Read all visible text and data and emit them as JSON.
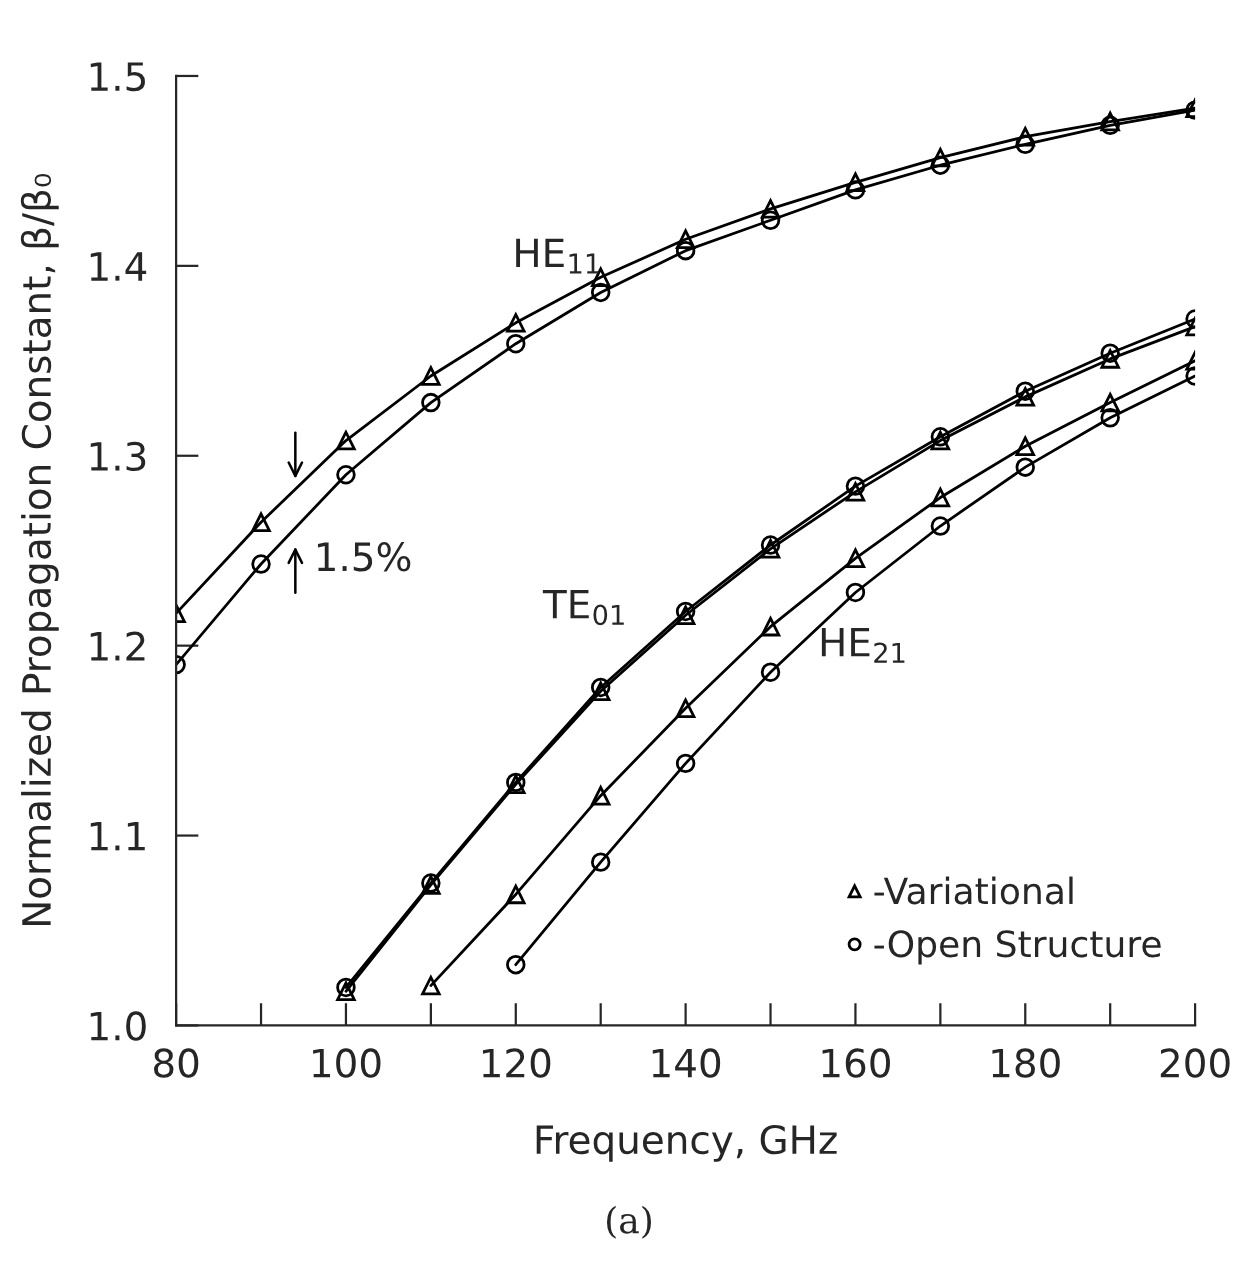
{
  "chart_data": {
    "type": "line",
    "xlabel": "Frequency, GHz",
    "ylabel": "Normalized Propagation Constant, β/β₀",
    "xlim": [
      80,
      200
    ],
    "ylim": [
      1.0,
      1.5
    ],
    "xticks": [
      80,
      {
        "value": 90,
        "label": null
      },
      100,
      {
        "value": 110,
        "label": null
      },
      120,
      {
        "value": 130,
        "label": null
      },
      140,
      {
        "value": 150,
        "label": null
      },
      160,
      {
        "value": 170,
        "label": null
      },
      180,
      {
        "value": 190,
        "label": null
      },
      200
    ],
    "yticks": [
      {
        "value": 1.0,
        "label": "1.0"
      },
      1.1,
      1.2,
      1.3,
      1.4,
      1.5
    ],
    "grid": false,
    "legend": "bottom right",
    "line_style": "solid",
    "series": [
      {
        "name": "-Variational",
        "color": "#000000",
        "marker": "triangle",
        "x": [
          80,
          90,
          100,
          110,
          120,
          130,
          140,
          150,
          160,
          170,
          180,
          190,
          200
        ],
        "values": [
          1.217,
          1.265,
          1.308,
          1.342,
          1.37,
          1.394,
          1.414,
          1.43,
          1.444,
          1.457,
          1.468,
          1.476,
          1.483
        ]
      },
      {
        "name": "-Open Structure",
        "color": "#000000",
        "marker": "circle",
        "x": [
          80,
          90,
          100,
          110,
          120,
          130,
          140,
          150,
          160,
          170,
          180,
          190,
          200
        ],
        "values": [
          1.19,
          1.243,
          1.29,
          1.328,
          1.359,
          1.386,
          1.408,
          1.424,
          1.44,
          1.453,
          1.464,
          1.474,
          1.482
        ]
      },
      {
        "color": "#000000",
        "marker": "triangle",
        "x": [
          100,
          110,
          120,
          130,
          140,
          150,
          160,
          170,
          180,
          190,
          200
        ],
        "values": [
          1.018,
          1.074,
          1.127,
          1.176,
          1.216,
          1.251,
          1.281,
          1.308,
          1.331,
          1.351,
          1.368
        ]
      },
      {
        "color": "#000000",
        "marker": "circle",
        "x": [
          100,
          110,
          120,
          130,
          140,
          150,
          160,
          170,
          180,
          190,
          200
        ],
        "values": [
          1.02,
          1.075,
          1.128,
          1.178,
          1.218,
          1.253,
          1.284,
          1.31,
          1.334,
          1.354,
          1.372
        ]
      },
      {
        "color": "#000000",
        "marker": "triangle",
        "x": [
          110,
          120,
          130,
          140,
          150,
          160,
          170,
          180,
          190,
          200
        ],
        "values": [
          1.021,
          1.069,
          1.121,
          1.167,
          1.21,
          1.246,
          1.278,
          1.305,
          1.328,
          1.35
        ]
      },
      {
        "color": "#000000",
        "marker": "circle",
        "x": [
          120,
          130,
          140,
          150,
          160,
          170,
          180,
          190,
          200
        ],
        "values": [
          1.032,
          1.086,
          1.138,
          1.186,
          1.228,
          1.263,
          1.294,
          1.32,
          1.342
        ]
      }
    ],
    "annotations": [
      "HE$_{11}$",
      "TE$_{01}$",
      "HE$_{21}$",
      "1.5%",
      "(a)"
    ]
  }
}
